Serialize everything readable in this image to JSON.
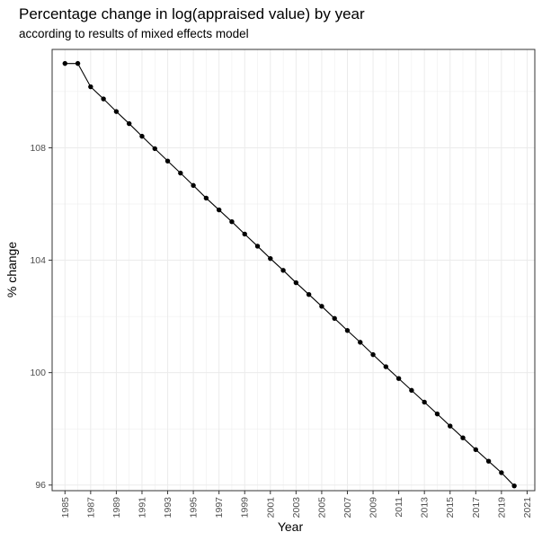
{
  "chart_data": {
    "type": "line",
    "title": "Percentage change in log(appraised value) by year",
    "subtitle": "according to results of mixed effects model",
    "xlabel": "Year",
    "ylabel": "% change",
    "xlim": [
      1984,
      2021.6
    ],
    "ylim": [
      95.8,
      111.5
    ],
    "x_ticks": [
      1985,
      1987,
      1989,
      1991,
      1993,
      1995,
      1997,
      1999,
      2001,
      2003,
      2005,
      2007,
      2009,
      2011,
      2013,
      2015,
      2017,
      2019,
      2021
    ],
    "y_ticks": [
      96,
      100,
      104,
      108
    ],
    "grid": true,
    "x": [
      1985,
      1986,
      1987,
      1988,
      1989,
      1990,
      1991,
      1992,
      1993,
      1994,
      1995,
      1996,
      1997,
      1998,
      1999,
      2000,
      2001,
      2002,
      2003,
      2004,
      2005,
      2006,
      2007,
      2008,
      2009,
      2010,
      2011,
      2012,
      2013,
      2014,
      2015,
      2016,
      2017,
      2018,
      2019,
      2020
    ],
    "y": [
      111.0,
      111.0,
      110.17,
      109.74,
      109.29,
      108.86,
      108.41,
      107.97,
      107.53,
      107.1,
      106.66,
      106.21,
      105.79,
      105.37,
      104.93,
      104.5,
      104.06,
      103.64,
      103.2,
      102.78,
      102.36,
      101.93,
      101.5,
      101.08,
      100.64,
      100.21,
      99.79,
      99.37,
      98.95,
      98.53,
      98.1,
      97.68,
      97.26,
      96.85,
      96.44,
      95.97
    ]
  },
  "colors": {
    "line": "#000000",
    "point": "#000000",
    "grid": "#ebebeb",
    "panel_border": "#333333",
    "tick": "#333333"
  }
}
